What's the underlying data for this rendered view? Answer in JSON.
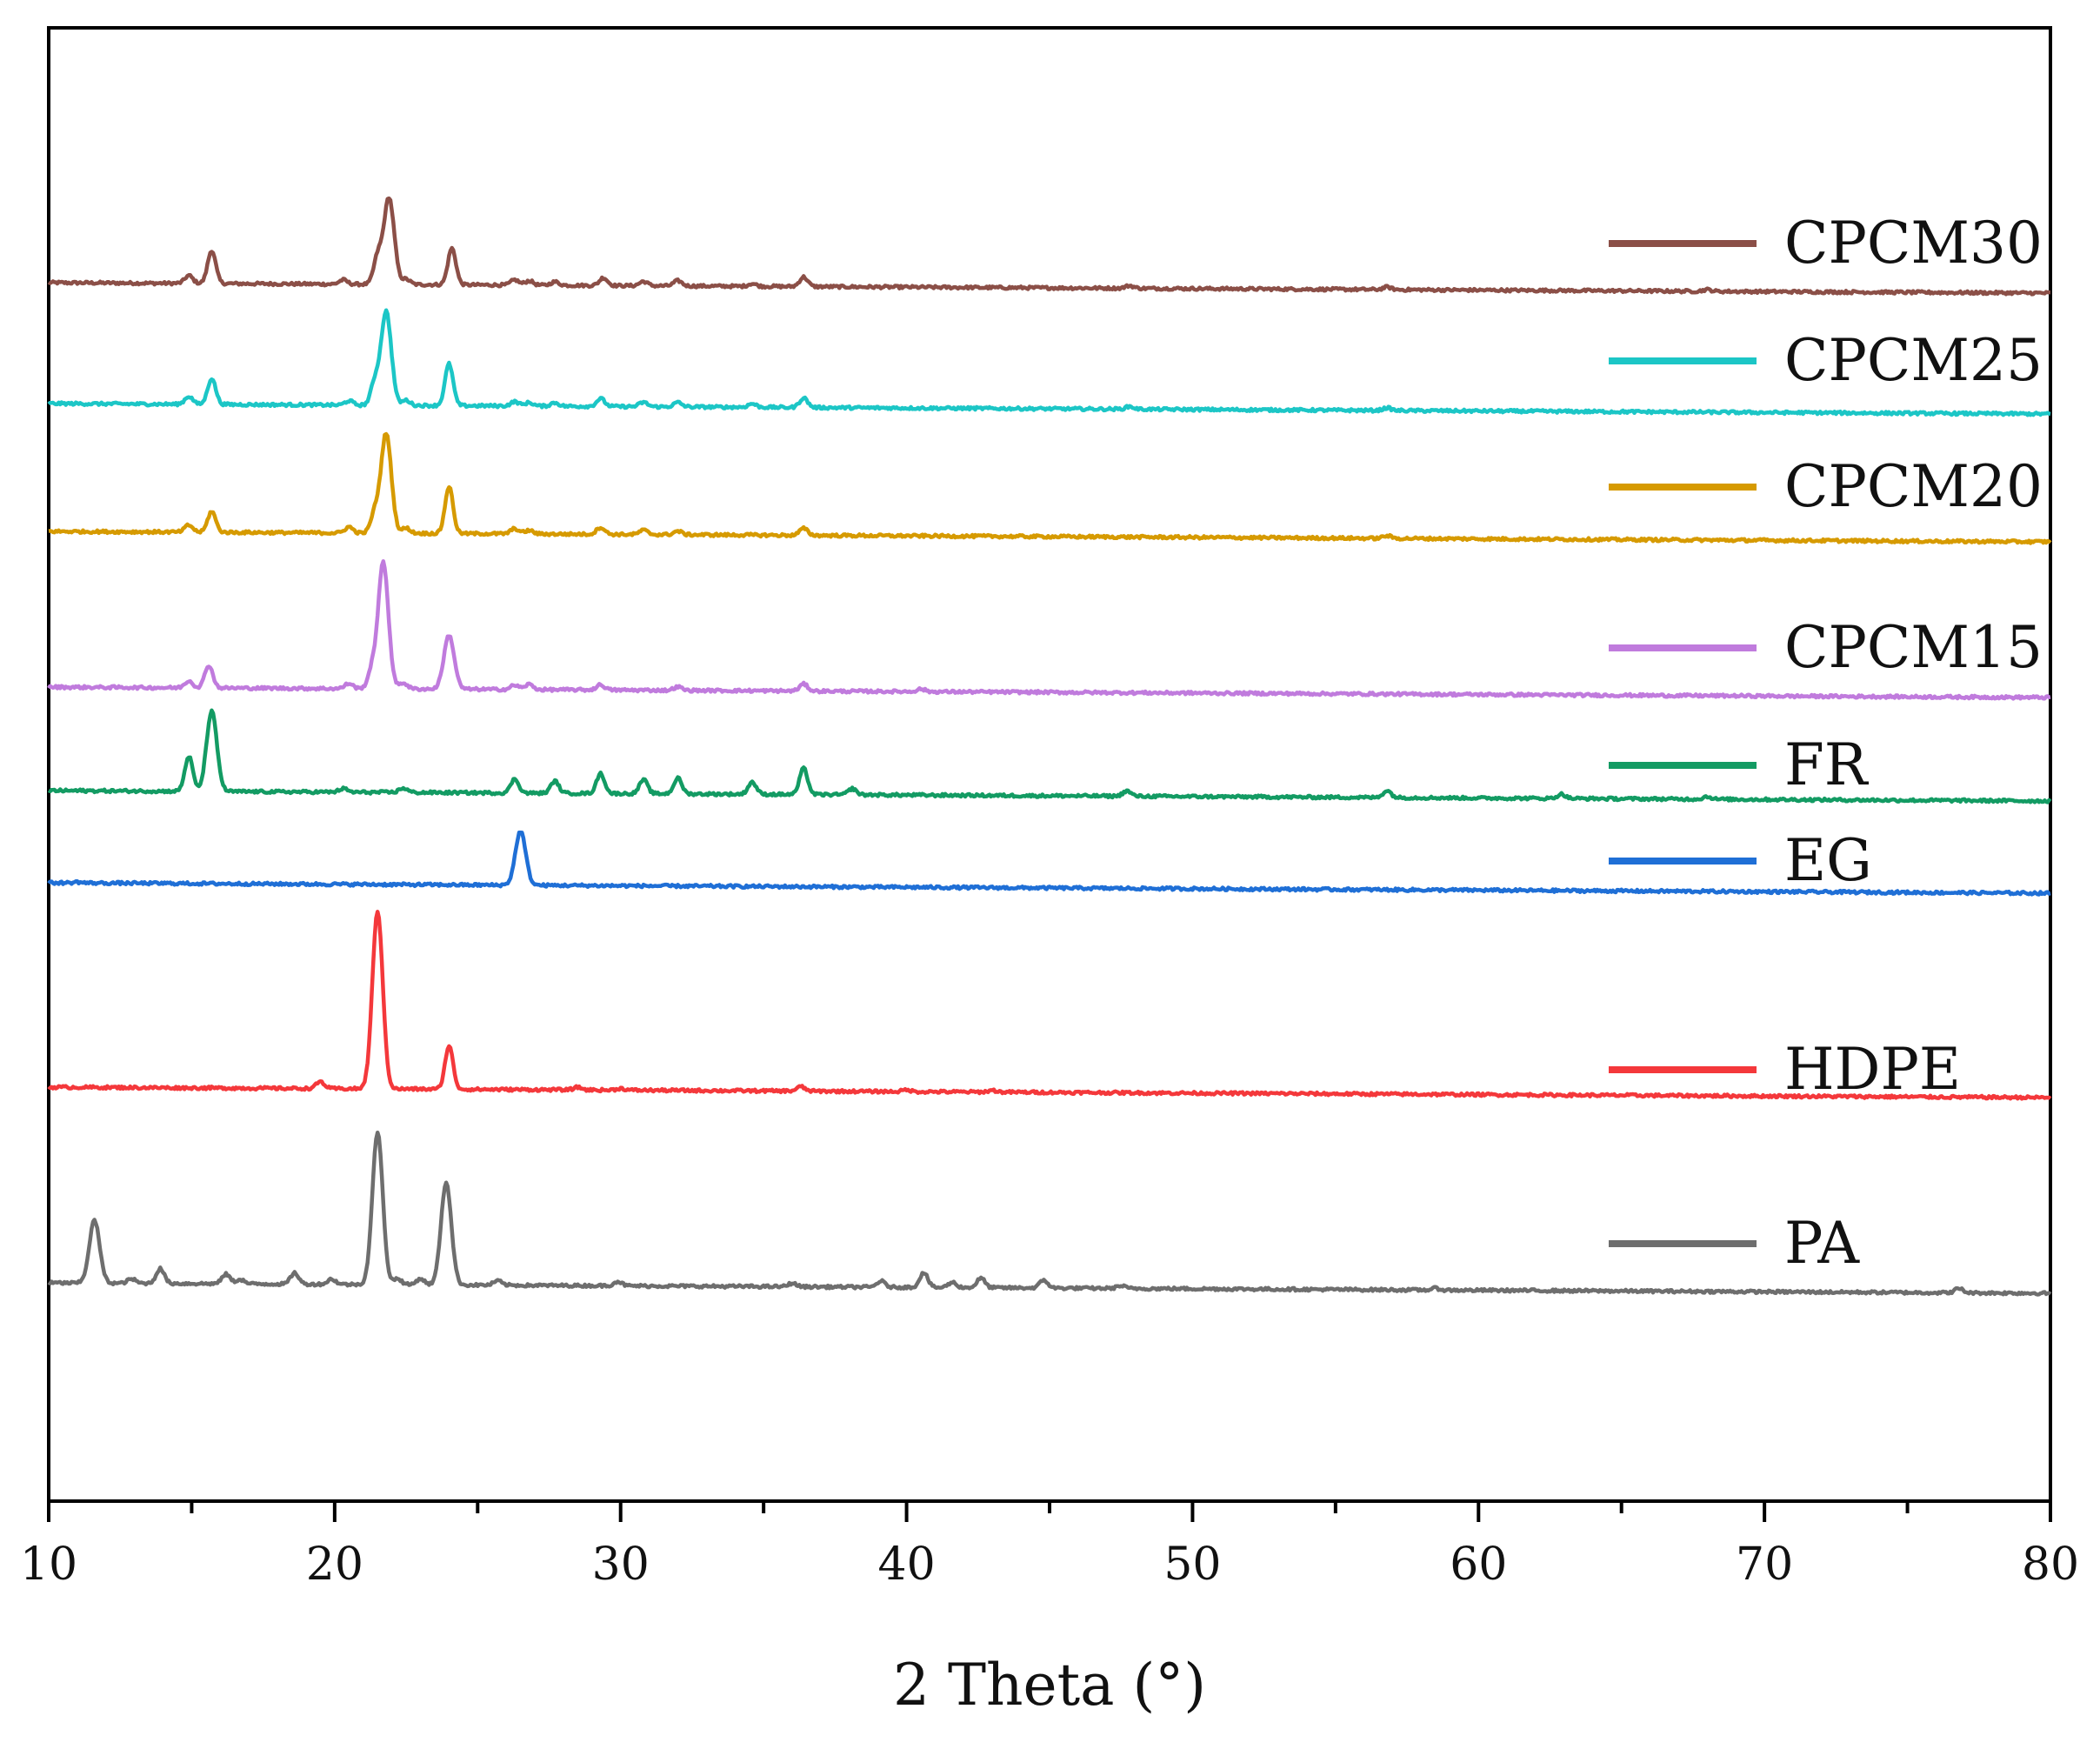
{
  "chart_data": {
    "type": "line",
    "title": "",
    "xlabel": "2 Theta (°)",
    "ylabel": "",
    "xlim": [
      10,
      80
    ],
    "xticks": [
      10,
      20,
      30,
      40,
      50,
      60,
      70,
      80
    ],
    "grid": false,
    "y_scale": "stacked, offset baselines (arbitrary intensity units)",
    "legend_placement": "right, beside each curve",
    "series": [
      {
        "name": "CPCM30",
        "color": "#8B4F47",
        "baseline": 1230,
        "end_baseline": 1218,
        "peaks": [
          [
            14.9,
            9
          ],
          [
            15.7,
            38
          ],
          [
            20.3,
            5
          ],
          [
            21.5,
            30
          ],
          [
            21.9,
            100
          ],
          [
            22.5,
            6
          ],
          [
            24.1,
            42
          ],
          [
            26.3,
            6
          ],
          [
            26.8,
            5
          ],
          [
            27.7,
            4
          ],
          [
            29.4,
            9
          ],
          [
            30.8,
            5
          ],
          [
            32.0,
            6
          ],
          [
            34.6,
            3
          ],
          [
            36.4,
            11
          ],
          [
            47.8,
            3
          ],
          [
            56.8,
            3
          ],
          [
            68.0,
            2
          ]
        ]
      },
      {
        "name": "CPCM25",
        "color": "#1CC6C6",
        "baseline": 1091,
        "end_baseline": 1079,
        "peaks": [
          [
            14.9,
            9
          ],
          [
            15.7,
            30
          ],
          [
            20.5,
            5
          ],
          [
            21.4,
            25
          ],
          [
            21.8,
            108
          ],
          [
            22.5,
            6
          ],
          [
            24.0,
            48
          ],
          [
            26.3,
            5
          ],
          [
            26.8,
            4
          ],
          [
            27.7,
            4
          ],
          [
            29.3,
            9
          ],
          [
            30.8,
            5
          ],
          [
            32.0,
            5
          ],
          [
            34.6,
            4
          ],
          [
            36.4,
            11
          ],
          [
            47.8,
            3
          ],
          [
            56.8,
            3
          ]
        ]
      },
      {
        "name": "CPCM20",
        "color": "#D69A00",
        "baseline": 944,
        "end_baseline": 932,
        "peaks": [
          [
            14.9,
            8
          ],
          [
            15.7,
            24
          ],
          [
            20.5,
            7
          ],
          [
            21.4,
            22
          ],
          [
            21.8,
            115
          ],
          [
            22.5,
            6
          ],
          [
            24.0,
            54
          ],
          [
            26.3,
            6
          ],
          [
            26.8,
            4
          ],
          [
            29.3,
            8
          ],
          [
            30.8,
            5
          ],
          [
            32.0,
            4
          ],
          [
            36.4,
            8
          ],
          [
            56.8,
            3
          ]
        ]
      },
      {
        "name": "CPCM15",
        "color": "#C07BDD",
        "baseline": 765,
        "end_baseline": 753,
        "peaks": [
          [
            14.9,
            8
          ],
          [
            15.6,
            26
          ],
          [
            20.5,
            6
          ],
          [
            21.3,
            20
          ],
          [
            21.7,
            145
          ],
          [
            22.4,
            7
          ],
          [
            24.0,
            62
          ],
          [
            26.3,
            5
          ],
          [
            26.8,
            6
          ],
          [
            29.3,
            6
          ],
          [
            32.0,
            4
          ],
          [
            36.4,
            8
          ],
          [
            40.5,
            3
          ]
        ]
      },
      {
        "name": "FR",
        "color": "#139B63",
        "baseline": 646,
        "end_baseline": 634,
        "peaks": [
          [
            14.9,
            40
          ],
          [
            15.7,
            92
          ],
          [
            20.3,
            4
          ],
          [
            22.4,
            5
          ],
          [
            26.3,
            16
          ],
          [
            27.7,
            14
          ],
          [
            29.3,
            23
          ],
          [
            30.8,
            16
          ],
          [
            32.0,
            18
          ],
          [
            34.6,
            14
          ],
          [
            36.4,
            30
          ],
          [
            38.1,
            7
          ],
          [
            47.7,
            6
          ],
          [
            56.8,
            8
          ],
          [
            62.9,
            5
          ],
          [
            68.0,
            3
          ]
        ]
      },
      {
        "name": "EG",
        "color": "#1F6FD6",
        "baseline": 540,
        "end_baseline": 528,
        "peaks": [
          [
            11.0,
            1
          ],
          [
            26.5,
            62
          ]
        ]
      },
      {
        "name": "HDPE",
        "color": "#F4383B",
        "baseline": 305,
        "end_baseline": 293,
        "peaks": [
          [
            19.5,
            8
          ],
          [
            21.5,
            205
          ],
          [
            24.0,
            50
          ],
          [
            28.5,
            3
          ],
          [
            30.0,
            2
          ],
          [
            36.3,
            5
          ],
          [
            40.0,
            2
          ],
          [
            43.0,
            2
          ]
        ]
      },
      {
        "name": "PA",
        "color": "#6E6E6E",
        "baseline": 80,
        "end_baseline": 68,
        "peaks": [
          [
            11.6,
            72
          ],
          [
            12.9,
            5
          ],
          [
            13.9,
            17
          ],
          [
            16.2,
            11
          ],
          [
            16.7,
            5
          ],
          [
            18.6,
            13
          ],
          [
            19.9,
            6
          ],
          [
            21.5,
            175
          ],
          [
            22.2,
            7
          ],
          [
            23.0,
            7
          ],
          [
            23.9,
            118
          ],
          [
            25.7,
            5
          ],
          [
            29.9,
            5
          ],
          [
            36.0,
            4
          ],
          [
            39.1,
            7
          ],
          [
            40.6,
            17
          ],
          [
            41.6,
            6
          ],
          [
            42.6,
            11
          ],
          [
            44.8,
            9
          ],
          [
            47.5,
            3
          ],
          [
            58.5,
            2
          ],
          [
            76.8,
            5
          ]
        ]
      }
    ]
  }
}
